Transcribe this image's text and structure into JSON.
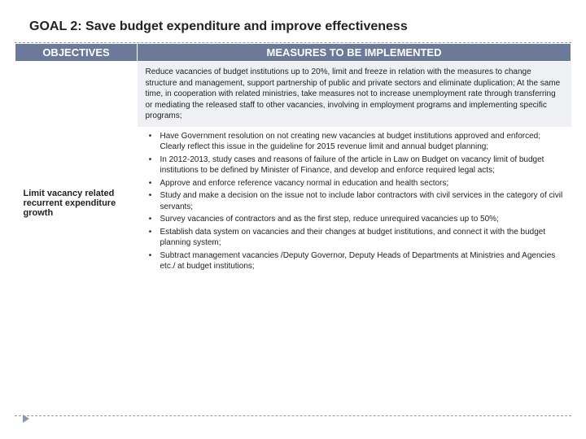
{
  "title": "GOAL 2: Save budget expenditure and improve effectiveness",
  "headers": {
    "objectives": "OBJECTIVES",
    "measures": "MEASURES TO BE IMPLEMENTED"
  },
  "summary": "Reduce vacancies of budget institutions up to 20%, limit and freeze in relation with the measures to change structure and management, support partnership of public and private sectors and eliminate duplication; At the same time, in cooperation with related ministries, take measures not to increase unemployment rate through transferring or mediating the released staff to other vacancies, involving in employment programs and implementing specific programs;",
  "objective": "Limit vacancy related recurrent expenditure growth",
  "bullets": [
    "Have Government resolution on not creating new vacancies at budget institutions approved and enforced; Clearly reflect this issue in the guideline for 2015 revenue limit and annual budget planning;",
    "In 2012-2013, study cases and reasons of failure of the article in Law on Budget on vacancy limit of budget institutions to be defined by Minister of Finance, and develop and enforce required legal acts;",
    "Approve and enforce reference vacancy normal in education and health sectors;",
    "Study and make a decision on the issue not to include labor contractors with civil services in the category of civil servants;",
    "Survey vacancies of contractors and as the first step, reduce unrequired vacancies up to 50%;",
    "Establish data system on vacancies and their changes at budget institutions, and connect it with the budget planning system;",
    "Subtract management vacancies /Deputy Governor, Deputy Heads of Departments at Ministries and Agencies etc./ at budget institutions;"
  ],
  "colors": {
    "header_bg": "#6b7a99",
    "summary_bg": "#eef0f4",
    "text": "#222222",
    "dash": "#999999",
    "arrow": "#8a97ad"
  }
}
